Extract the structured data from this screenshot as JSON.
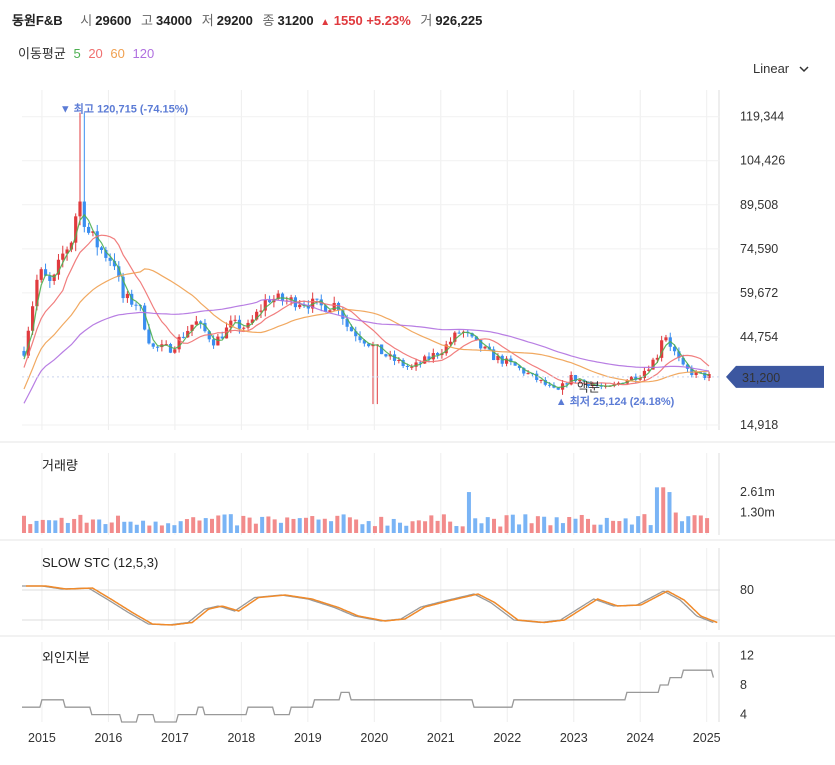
{
  "header": {
    "name": "동원F&B",
    "open_label": "시",
    "open": "29600",
    "high_label": "고",
    "high": "34000",
    "low_label": "저",
    "low": "29200",
    "close_label": "종",
    "close": "31200",
    "change_arrow": "▲",
    "change": "1550",
    "change_pct": "+5.23%",
    "volume_label": "거",
    "volume": "926,225"
  },
  "ma_legend": {
    "label": "이동평균",
    "items": [
      {
        "name": "5",
        "color": "#4caf50"
      },
      {
        "name": "20",
        "color": "#f07070"
      },
      {
        "name": "60",
        "color": "#f0a050"
      },
      {
        "name": "120",
        "color": "#b070e0"
      }
    ]
  },
  "scale_selector": {
    "label": "Linear",
    "icon": "chevron-down-icon"
  },
  "colors": {
    "up": "#e03a3e",
    "down": "#3a8ef0",
    "vol_up": "#f28b8b",
    "vol_down": "#7ab4f5",
    "price_tag_bg": "#3c57a0",
    "annotation": "#5b7bd5"
  },
  "chart_data": [
    {
      "type": "candlestick",
      "title": "price",
      "y_ticks": [
        "119,344",
        "104,426",
        "89,508",
        "74,590",
        "59,672",
        "44,754",
        "14,918"
      ],
      "y_tick_values": [
        119344,
        104426,
        89508,
        74590,
        59672,
        44754,
        14918
      ],
      "ylim": [
        14918,
        125000
      ],
      "x_ticks": [
        "2015",
        "2016",
        "2017",
        "2018",
        "2019",
        "2020",
        "2021",
        "2022",
        "2023",
        "2024",
        "2025"
      ],
      "xlim": [
        2014.7,
        2025.2
      ],
      "current_price": {
        "label": "31,200",
        "value": 31200
      },
      "high_annotation": {
        "text": "▼ 최고 120,715 (-74.15%)",
        "value": 120715,
        "x": 2015.6
      },
      "low_annotation": {
        "text": "▲ 최저 25,124 (24.18%)",
        "value": 25124,
        "x": 2022.85
      },
      "split_marker": {
        "text": "액분",
        "x": 2023.2
      },
      "anchors": [
        [
          2014.73,
          40000
        ],
        [
          2014.95,
          67000
        ],
        [
          2015.15,
          62000
        ],
        [
          2015.3,
          72000
        ],
        [
          2015.45,
          78000
        ],
        [
          2015.55,
          92000
        ],
        [
          2015.7,
          80000
        ],
        [
          2015.9,
          74000
        ],
        [
          2016.1,
          70000
        ],
        [
          2016.2,
          58000
        ],
        [
          2016.45,
          56000
        ],
        [
          2016.65,
          41000
        ],
        [
          2016.95,
          41000
        ],
        [
          2017.3,
          50000
        ],
        [
          2017.6,
          43000
        ],
        [
          2017.85,
          49000
        ],
        [
          2018.1,
          48000
        ],
        [
          2018.4,
          58000
        ],
        [
          2018.65,
          57000
        ],
        [
          2018.9,
          57000
        ],
        [
          2019.2,
          55000
        ],
        [
          2019.45,
          56000
        ],
        [
          2019.6,
          48000
        ],
        [
          2019.9,
          43000
        ],
        [
          2020.2,
          38000
        ],
        [
          2020.55,
          34000
        ],
        [
          2020.85,
          38000
        ],
        [
          2021.05,
          41000
        ],
        [
          2021.3,
          47000
        ],
        [
          2021.55,
          42000
        ],
        [
          2021.8,
          38000
        ],
        [
          2022.1,
          35000
        ],
        [
          2022.4,
          31000
        ],
        [
          2022.75,
          26000
        ],
        [
          2022.95,
          31000
        ],
        [
          2023.25,
          29000
        ],
        [
          2023.5,
          27000
        ],
        [
          2023.75,
          30000
        ],
        [
          2024.0,
          32000
        ],
        [
          2024.25,
          38000
        ],
        [
          2024.35,
          47000
        ],
        [
          2024.5,
          40000
        ],
        [
          2024.65,
          34000
        ],
        [
          2024.85,
          32000
        ],
        [
          2025.1,
          31200
        ]
      ]
    },
    {
      "type": "bar",
      "title": "거래량",
      "y_ticks": [
        "2.61m",
        "1.30m"
      ],
      "y_tick_values": [
        2.61,
        1.3
      ],
      "ylim": [
        0,
        4.0
      ],
      "spikes": [
        [
          2021.4,
          2.6
        ],
        [
          2024.3,
          2.9
        ],
        [
          2024.4,
          2.6
        ],
        [
          2024.55,
          1.3
        ]
      ]
    },
    {
      "type": "line",
      "title": "SLOW STC (12,5,3)",
      "y_ticks": [
        "80"
      ],
      "y_tick_values": [
        80
      ],
      "ylim": [
        0,
        110
      ],
      "k_color": "#999999",
      "d_color": "#f08a2a",
      "anchors": [
        [
          2014.7,
          88
        ],
        [
          2015.0,
          88
        ],
        [
          2015.3,
          82
        ],
        [
          2015.7,
          84
        ],
        [
          2016.0,
          60
        ],
        [
          2016.3,
          35
        ],
        [
          2016.6,
          12
        ],
        [
          2016.9,
          10
        ],
        [
          2017.2,
          15
        ],
        [
          2017.45,
          42
        ],
        [
          2017.65,
          48
        ],
        [
          2017.9,
          38
        ],
        [
          2018.2,
          65
        ],
        [
          2018.6,
          70
        ],
        [
          2019.0,
          62
        ],
        [
          2019.4,
          45
        ],
        [
          2019.7,
          28
        ],
        [
          2020.1,
          18
        ],
        [
          2020.4,
          22
        ],
        [
          2020.7,
          46
        ],
        [
          2021.05,
          58
        ],
        [
          2021.5,
          72
        ],
        [
          2021.75,
          55
        ],
        [
          2022.1,
          20
        ],
        [
          2022.5,
          15
        ],
        [
          2022.8,
          20
        ],
        [
          2023.3,
          62
        ],
        [
          2023.6,
          48
        ],
        [
          2023.95,
          50
        ],
        [
          2024.35,
          78
        ],
        [
          2024.6,
          60
        ],
        [
          2024.85,
          28
        ],
        [
          2025.1,
          15
        ]
      ]
    },
    {
      "type": "line",
      "title": "외인지분",
      "y_ticks": [
        "12",
        "8",
        "4"
      ],
      "y_tick_values": [
        12,
        8,
        4
      ],
      "ylim": [
        3,
        13
      ],
      "color": "#999999",
      "steps": [
        [
          2014.7,
          5
        ],
        [
          2015.0,
          6
        ],
        [
          2015.35,
          5
        ],
        [
          2015.75,
          4
        ],
        [
          2016.2,
          3
        ],
        [
          2016.45,
          4
        ],
        [
          2016.7,
          3
        ],
        [
          2017.05,
          4
        ],
        [
          2017.35,
          5
        ],
        [
          2017.45,
          4
        ],
        [
          2017.75,
          4
        ],
        [
          2018.1,
          5
        ],
        [
          2018.5,
          4
        ],
        [
          2018.75,
          5
        ],
        [
          2019.1,
          6
        ],
        [
          2019.5,
          7
        ],
        [
          2019.65,
          6
        ],
        [
          2020.5,
          6
        ],
        [
          2021.5,
          5
        ],
        [
          2021.9,
          5
        ],
        [
          2022.1,
          6
        ],
        [
          2023.5,
          6
        ],
        [
          2023.8,
          7
        ],
        [
          2024.3,
          8
        ],
        [
          2024.45,
          9
        ],
        [
          2024.65,
          10
        ],
        [
          2025.1,
          9
        ]
      ]
    }
  ]
}
